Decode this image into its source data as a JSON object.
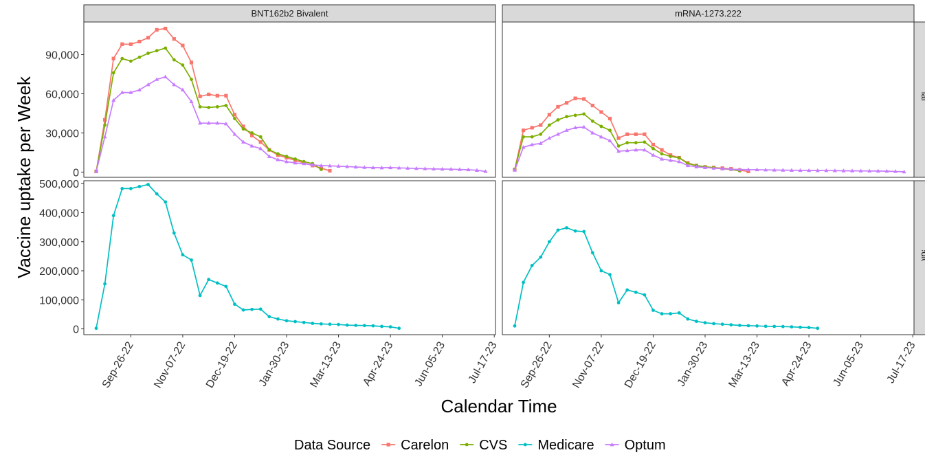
{
  "chart_data": {
    "type": "line",
    "title": "",
    "xlabel": "Calendar Time",
    "ylabel": "Vaccine uptake per Week",
    "legend": {
      "title": "Data Source",
      "position": "bottom"
    },
    "columns": [
      "BNT162b2 Bivalent",
      "mRNA-1273.222"
    ],
    "rows": [
      "Commercial Databases",
      "Medicare"
    ],
    "x_ticks": [
      "Sep-26-22",
      "Nov-07-22",
      "Dec-19-22",
      "Jan-30-23",
      "Mar-13-23",
      "Apr-24-23",
      "Jun-05-23",
      "Jul-17-23"
    ],
    "x_tick_values": [
      "2022-09-26",
      "2022-11-07",
      "2022-12-19",
      "2023-01-30",
      "2023-03-13",
      "2023-04-24",
      "2023-06-05",
      "2023-07-17"
    ],
    "x_range": [
      "2022-08-19",
      "2023-07-18"
    ],
    "row_axes": [
      {
        "row": "Commercial Databases",
        "ylim": [
          -4000,
          115000
        ],
        "ticks": [
          0,
          30000,
          60000,
          90000
        ],
        "tick_labels": [
          "0",
          "30,000",
          "60,000",
          "90,000"
        ]
      },
      {
        "row": "Medicare",
        "ylim": [
          -20000,
          510000
        ],
        "ticks": [
          0,
          100000,
          200000,
          300000,
          400000,
          500000
        ],
        "tick_labels": [
          "0",
          "100,000",
          "200,000",
          "300,000",
          "400,000",
          "500,000"
        ]
      }
    ],
    "series_colors": {
      "Carelon": "#F8766D",
      "CVS": "#7CAE00",
      "Medicare": "#00BFC4",
      "Optum": "#C77CFF"
    },
    "series_markers": {
      "Carelon": "square",
      "CVS": "circle",
      "Medicare": "circle",
      "Optum": "triangle"
    },
    "series_order": [
      "Carelon",
      "CVS",
      "Medicare",
      "Optum"
    ],
    "panels": [
      {
        "column": "BNT162b2 Bivalent",
        "row": "Commercial Databases",
        "series": [
          {
            "name": "Carelon",
            "start": "2022-08-29",
            "values": [
              500,
              40000,
              87000,
              98000,
              98000,
              100000,
              103000,
              109000,
              110000,
              102000,
              97000,
              84000,
              58000,
              59500,
              58500,
              58500,
              44000,
              35000,
              28000,
              23000,
              17000,
              13000,
              11000,
              9000,
              7000,
              5000,
              3000,
              1000
            ]
          },
          {
            "name": "CVS",
            "start": "2022-08-29",
            "values": [
              500,
              36000,
              76000,
              87000,
              85000,
              88000,
              91000,
              93000,
              95000,
              86000,
              82000,
              71000,
              50000,
              49500,
              50000,
              51000,
              41000,
              33000,
              30000,
              27000,
              17000,
              14000,
              12000,
              10000,
              8000,
              6500,
              2000
            ]
          },
          {
            "name": "Optum",
            "start": "2022-08-29",
            "values": [
              500,
              27000,
              55000,
              61000,
              61000,
              63000,
              67000,
              71000,
              73000,
              67000,
              63000,
              54000,
              37500,
              37500,
              37500,
              37000,
              29000,
              23000,
              20000,
              18000,
              12000,
              9500,
              8000,
              7000,
              6500,
              5500,
              5000,
              4800,
              4500,
              4200,
              3900,
              3600,
              3400,
              3300,
              3400,
              3200,
              3000,
              2800,
              2600,
              2400,
              2300,
              2200,
              2000,
              1800,
              1400,
              500
            ]
          }
        ]
      },
      {
        "column": "mRNA-1273.222",
        "row": "Commercial Databases",
        "series": [
          {
            "name": "Carelon",
            "start": "2022-08-29",
            "values": [
              2000,
              32000,
              34000,
              36000,
              44000,
              50000,
              53000,
              56500,
              56000,
              51000,
              46000,
              41000,
              26000,
              29000,
              29000,
              29000,
              21000,
              17000,
              13000,
              11000,
              7000,
              5000,
              4000,
              3500,
              3000,
              2500,
              1500,
              500
            ]
          },
          {
            "name": "CVS",
            "start": "2022-08-29",
            "values": [
              2000,
              27000,
              27000,
              29000,
              36000,
              40000,
              42500,
              43500,
              44500,
              39000,
              35000,
              32000,
              20000,
              22500,
              22500,
              23000,
              18000,
              14000,
              12000,
              11000,
              6500,
              5000,
              4000,
              3500,
              2500,
              2000,
              1000
            ]
          },
          {
            "name": "Optum",
            "start": "2022-08-29",
            "values": [
              1500,
              19000,
              21000,
              22000,
              26000,
              29000,
              32000,
              34000,
              34500,
              30000,
              27000,
              24000,
              16000,
              16500,
              17000,
              17000,
              13000,
              10000,
              9000,
              8000,
              5000,
              4000,
              3500,
              3000,
              2500,
              2200,
              2000,
              1900,
              1800,
              1700,
              1600,
              1500,
              1400,
              1300,
              1250,
              1200,
              1150,
              1100,
              1000,
              950,
              900,
              850,
              800,
              700,
              500,
              200
            ]
          }
        ]
      },
      {
        "column": "BNT162b2 Bivalent",
        "row": "Medicare",
        "series": [
          {
            "name": "Medicare",
            "start": "2022-08-29",
            "values": [
              2000,
              155000,
              390000,
              483000,
              483000,
              490000,
              497000,
              465000,
              437000,
              330000,
              255000,
              237000,
              115000,
              170000,
              158000,
              146000,
              85000,
              65000,
              67000,
              68000,
              42000,
              34000,
              28000,
              25000,
              22000,
              19000,
              17000,
              16000,
              15000,
              13000,
              12000,
              11500,
              10500,
              8500,
              7000,
              2000
            ]
          }
        ]
      },
      {
        "column": "mRNA-1273.222",
        "row": "Medicare",
        "series": [
          {
            "name": "Medicare",
            "start": "2022-08-29",
            "values": [
              10000,
              160000,
              218000,
              247000,
              300000,
              340000,
              348000,
              337000,
              335000,
              262000,
              200000,
              187000,
              90000,
              134000,
              126000,
              117000,
              64000,
              52000,
              52000,
              55000,
              34000,
              26000,
              21000,
              18000,
              16000,
              14000,
              12000,
              11000,
              10000,
              9000,
              8500,
              8000,
              7000,
              5500,
              4500,
              2000
            ]
          }
        ]
      }
    ]
  }
}
